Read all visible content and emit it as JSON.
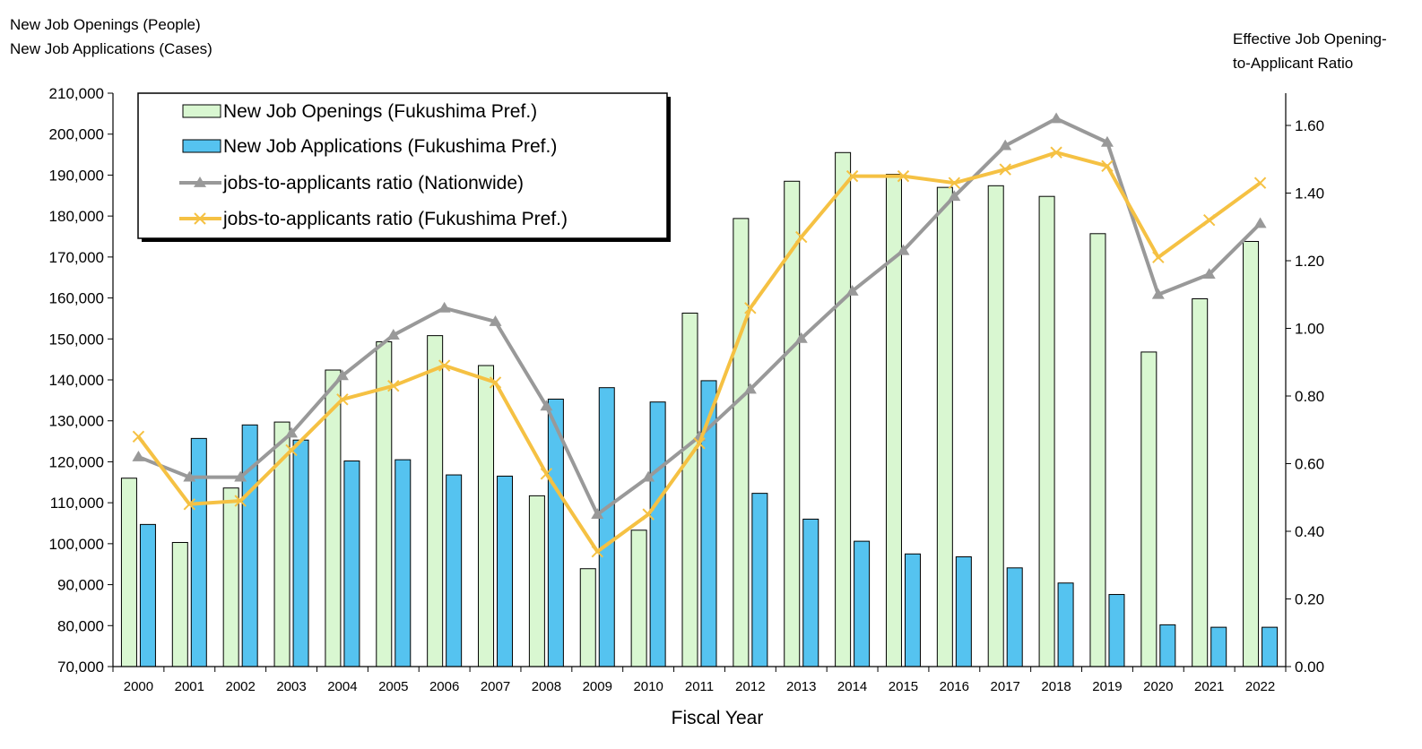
{
  "chart_data": {
    "type": "bar",
    "ylabel_left": [
      "New Job Openings (People)",
      "New Job Applications (Cases)"
    ],
    "ylabel_right": [
      "Effective Job Opening-",
      "to-Applicant Ratio"
    ],
    "xlabel": "Fiscal Year",
    "categories": [
      "2000",
      "2001",
      "2002",
      "2003",
      "2004",
      "2005",
      "2006",
      "2007",
      "2008",
      "2009",
      "2010",
      "2011",
      "2012",
      "2013",
      "2014",
      "2015",
      "2016",
      "2017",
      "2018",
      "2019",
      "2020",
      "2021",
      "2022"
    ],
    "y_left": {
      "min": 70000,
      "max": 210000,
      "step": 10000,
      "ticks": [
        "70,000",
        "80,000",
        "90,000",
        "100,000",
        "110,000",
        "120,000",
        "130,000",
        "140,000",
        "150,000",
        "160,000",
        "170,000",
        "180,000",
        "190,000",
        "200,000",
        "210,000"
      ]
    },
    "y_right": {
      "min": 0,
      "max": 1.7,
      "step": 0.2,
      "ticks": [
        "0.00",
        "0.20",
        "0.40",
        "0.60",
        "0.80",
        "1.00",
        "1.20",
        "1.40",
        "1.60"
      ]
    },
    "series": [
      {
        "name": "New Job Openings (Fukushima Pref.)",
        "kind": "bar",
        "axis": "left",
        "color": "#d9f7d1",
        "stroke": "#000000",
        "values": [
          116000,
          100300,
          113600,
          129700,
          142400,
          149300,
          150800,
          143500,
          111700,
          93900,
          103300,
          156300,
          179400,
          188500,
          195500,
          190200,
          187000,
          187400,
          184800,
          175700,
          146800,
          159800,
          173800
        ]
      },
      {
        "name": "New Job Applications (Fukushima Pref.)",
        "kind": "bar",
        "axis": "left",
        "color": "#55c3f0",
        "stroke": "#000000",
        "values": [
          104700,
          125700,
          129000,
          125300,
          120200,
          120500,
          116800,
          116500,
          135300,
          138100,
          134600,
          139800,
          112300,
          106000,
          100600,
          97500,
          96800,
          94100,
          90400,
          87600,
          80200,
          79600,
          79600
        ]
      },
      {
        "name": "jobs-to-applicants ratio (Nationwide)",
        "kind": "line",
        "axis": "right",
        "color": "#999999",
        "marker": "triangle",
        "values": [
          0.62,
          0.56,
          0.56,
          0.69,
          0.86,
          0.98,
          1.06,
          1.02,
          0.77,
          0.45,
          0.56,
          0.68,
          0.82,
          0.97,
          1.11,
          1.23,
          1.39,
          1.54,
          1.62,
          1.55,
          1.1,
          1.16,
          1.31
        ]
      },
      {
        "name": "jobs-to-applicants ratio (Fukushima Pref.)",
        "kind": "line",
        "axis": "right",
        "color": "#f5c143",
        "marker": "x",
        "values": [
          0.68,
          0.48,
          0.49,
          0.64,
          0.79,
          0.83,
          0.89,
          0.84,
          0.57,
          0.34,
          0.45,
          0.66,
          1.06,
          1.27,
          1.45,
          1.45,
          1.43,
          1.47,
          1.52,
          1.48,
          1.21,
          1.32,
          1.43
        ]
      }
    ],
    "legend_position": "top-left",
    "grid": false
  }
}
